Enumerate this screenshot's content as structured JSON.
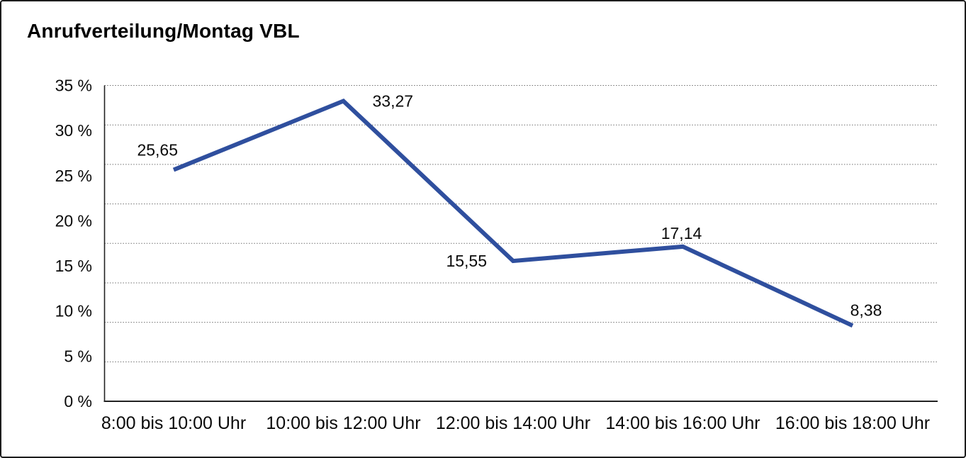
{
  "title": "Anrufverteilung/Montag VBL",
  "chart_data": {
    "type": "line",
    "title": "Anrufverteilung/Montag VBL",
    "categories": [
      "8:00 bis 10:00 Uhr",
      "10:00 bis 12:00 Uhr",
      "12:00 bis 14:00 Uhr",
      "14:00 bis 16:00 Uhr",
      "16:00 bis 18:00 Uhr"
    ],
    "values": [
      25.65,
      33.27,
      15.55,
      17.14,
      8.38
    ],
    "point_labels": [
      "25,65",
      "33,27",
      "15,55",
      "17,14",
      "8,38"
    ],
    "y_tick_labels": [
      "35 %",
      "30 %",
      "25 %",
      "20 %",
      "15 %",
      "10 %",
      "5 %",
      "0 %"
    ],
    "ylim": [
      0,
      35
    ],
    "y_tick_step": 5,
    "xlabel": "",
    "ylabel": "",
    "legend": "none",
    "grid": "horizontal-dotted",
    "grid_divisions": 8,
    "line_color": "#2F4F9E",
    "axis_color": "#222222",
    "gridline_color": "#6e6e6e",
    "text_color": "#0a0a0a"
  }
}
